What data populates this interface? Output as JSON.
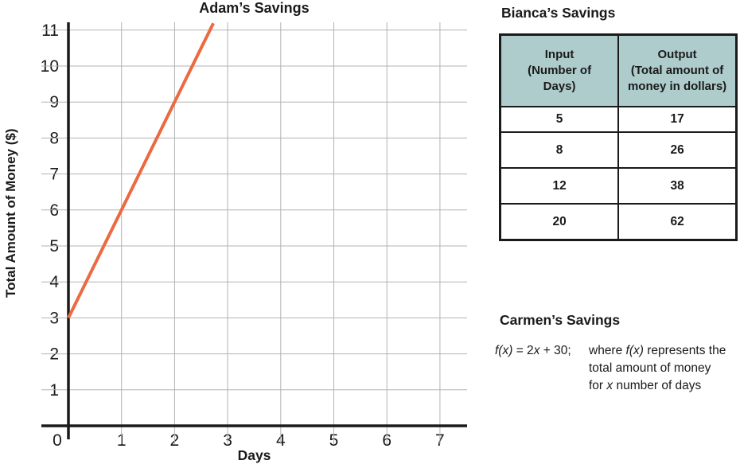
{
  "chart_data": {
    "type": "line",
    "title": "Adam’s Savings",
    "xlabel": "Days",
    "ylabel": "Total Amount of Money ($)",
    "x_ticks": [
      0,
      1,
      2,
      3,
      4,
      5,
      6,
      7
    ],
    "y_ticks": [
      1,
      2,
      3,
      4,
      5,
      6,
      7,
      8,
      9,
      10,
      11
    ],
    "xlim": [
      0,
      7.5
    ],
    "ylim": [
      0,
      11.2
    ],
    "grid": true,
    "legend": false,
    "line_color": "#EC6A41",
    "axis_color": "#1a1a1a",
    "grid_color": "#b3b3b3",
    "series": [
      {
        "name": "Adam's savings line",
        "equation": "y = 3x + 3",
        "slope": 3,
        "y_intercept": 3,
        "drawn_segment": {
          "x1": 0,
          "y1": 3,
          "x2": 2.73,
          "y2": 11.19
        },
        "sample_points": [
          [
            0,
            3
          ],
          [
            1,
            6
          ],
          [
            2,
            9
          ]
        ]
      }
    ]
  },
  "bianca": {
    "title": "Bianca’s Savings",
    "header_bg": "#AECCCC",
    "table": {
      "headers": [
        "Input\n(Number of\nDays)",
        "Output\n(Total amount of\nmoney in dollars)"
      ],
      "rows": [
        [
          "5",
          "17"
        ],
        [
          "8",
          "26"
        ],
        [
          "12",
          "38"
        ],
        [
          "20",
          "62"
        ]
      ]
    }
  },
  "carmen": {
    "title": "Carmen’s Savings",
    "formula_fx": "f(x)",
    "formula_mid": " = 2",
    "formula_x": "x",
    "formula_end": " + 30;",
    "where_pre": "where ",
    "where_fx": "f(x)",
    "where_post": " represents the",
    "line2": "total amount of money",
    "line3_pre": "for ",
    "line3_x": "x",
    "line3_post": " number of days"
  }
}
